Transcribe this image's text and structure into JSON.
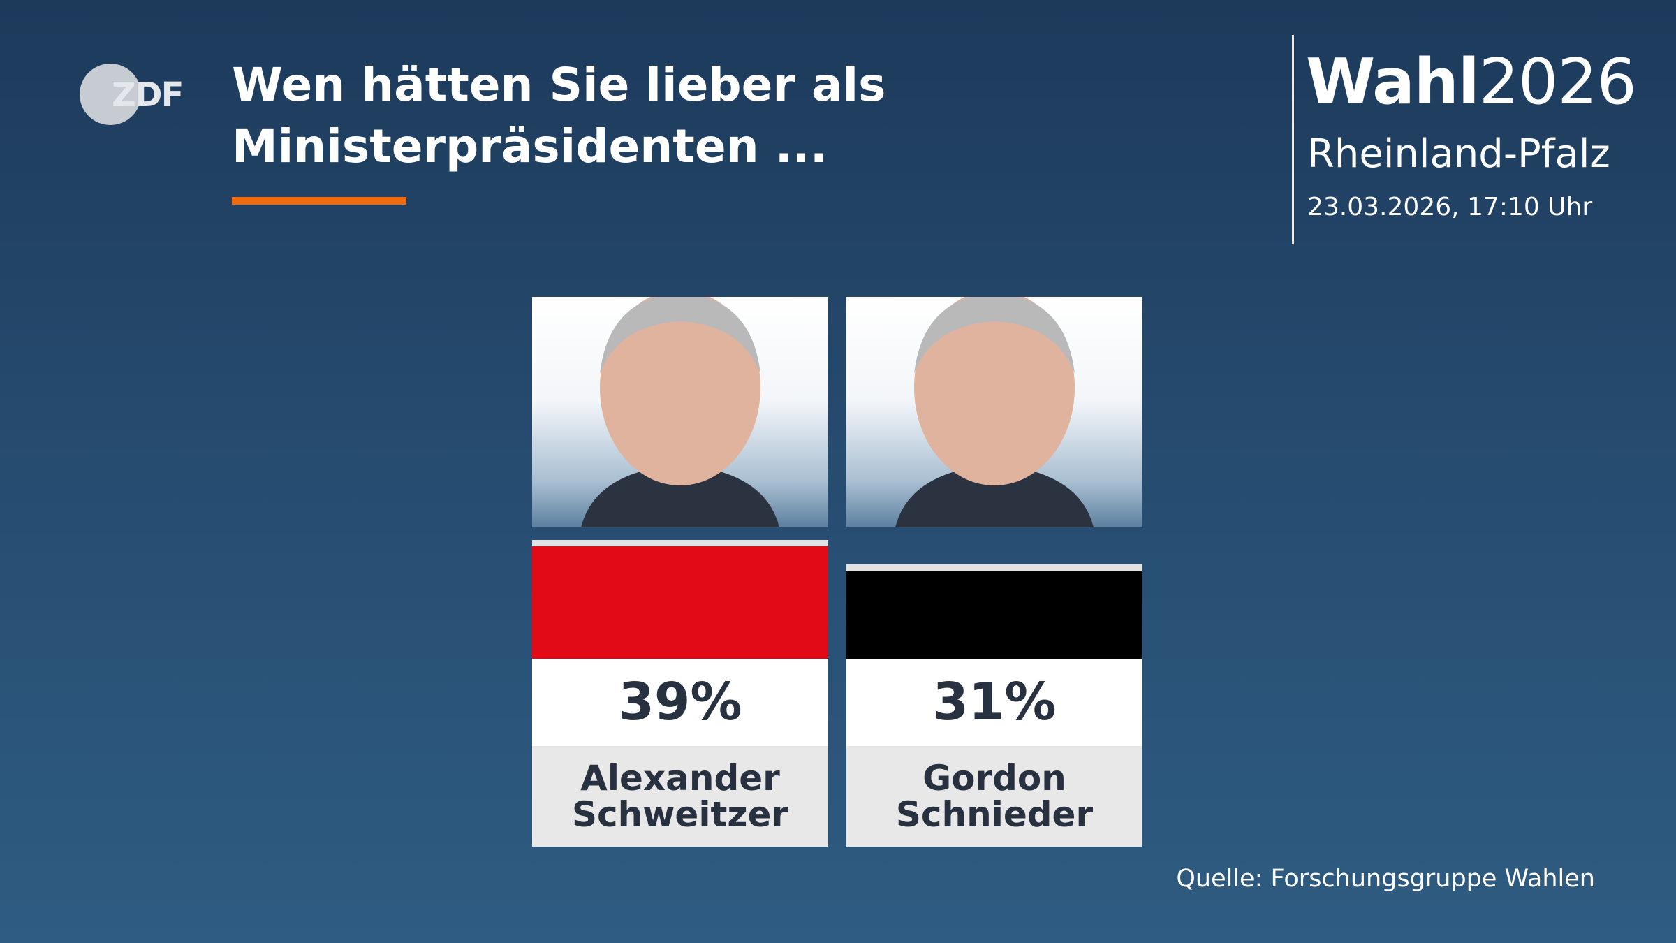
{
  "logo": "ZDF",
  "title_lines": [
    "Wen hätten Sie lieber als",
    "Ministerpräsidenten ..."
  ],
  "brand_word": "Wahl",
  "brand_year": "2026",
  "region": "Rheinland-Pfalz",
  "timestamp": "23.03.2026, 17:10 Uhr",
  "source": "Quelle: Forschungsgruppe Wahlen",
  "chart_data": {
    "type": "bar",
    "categories": [
      "Alexander Schweitzer",
      "Gordon Schnieder"
    ],
    "values": [
      39,
      31
    ],
    "value_labels": [
      "39%",
      "31%"
    ],
    "colors": [
      "#e30a17",
      "#000000"
    ]
  }
}
